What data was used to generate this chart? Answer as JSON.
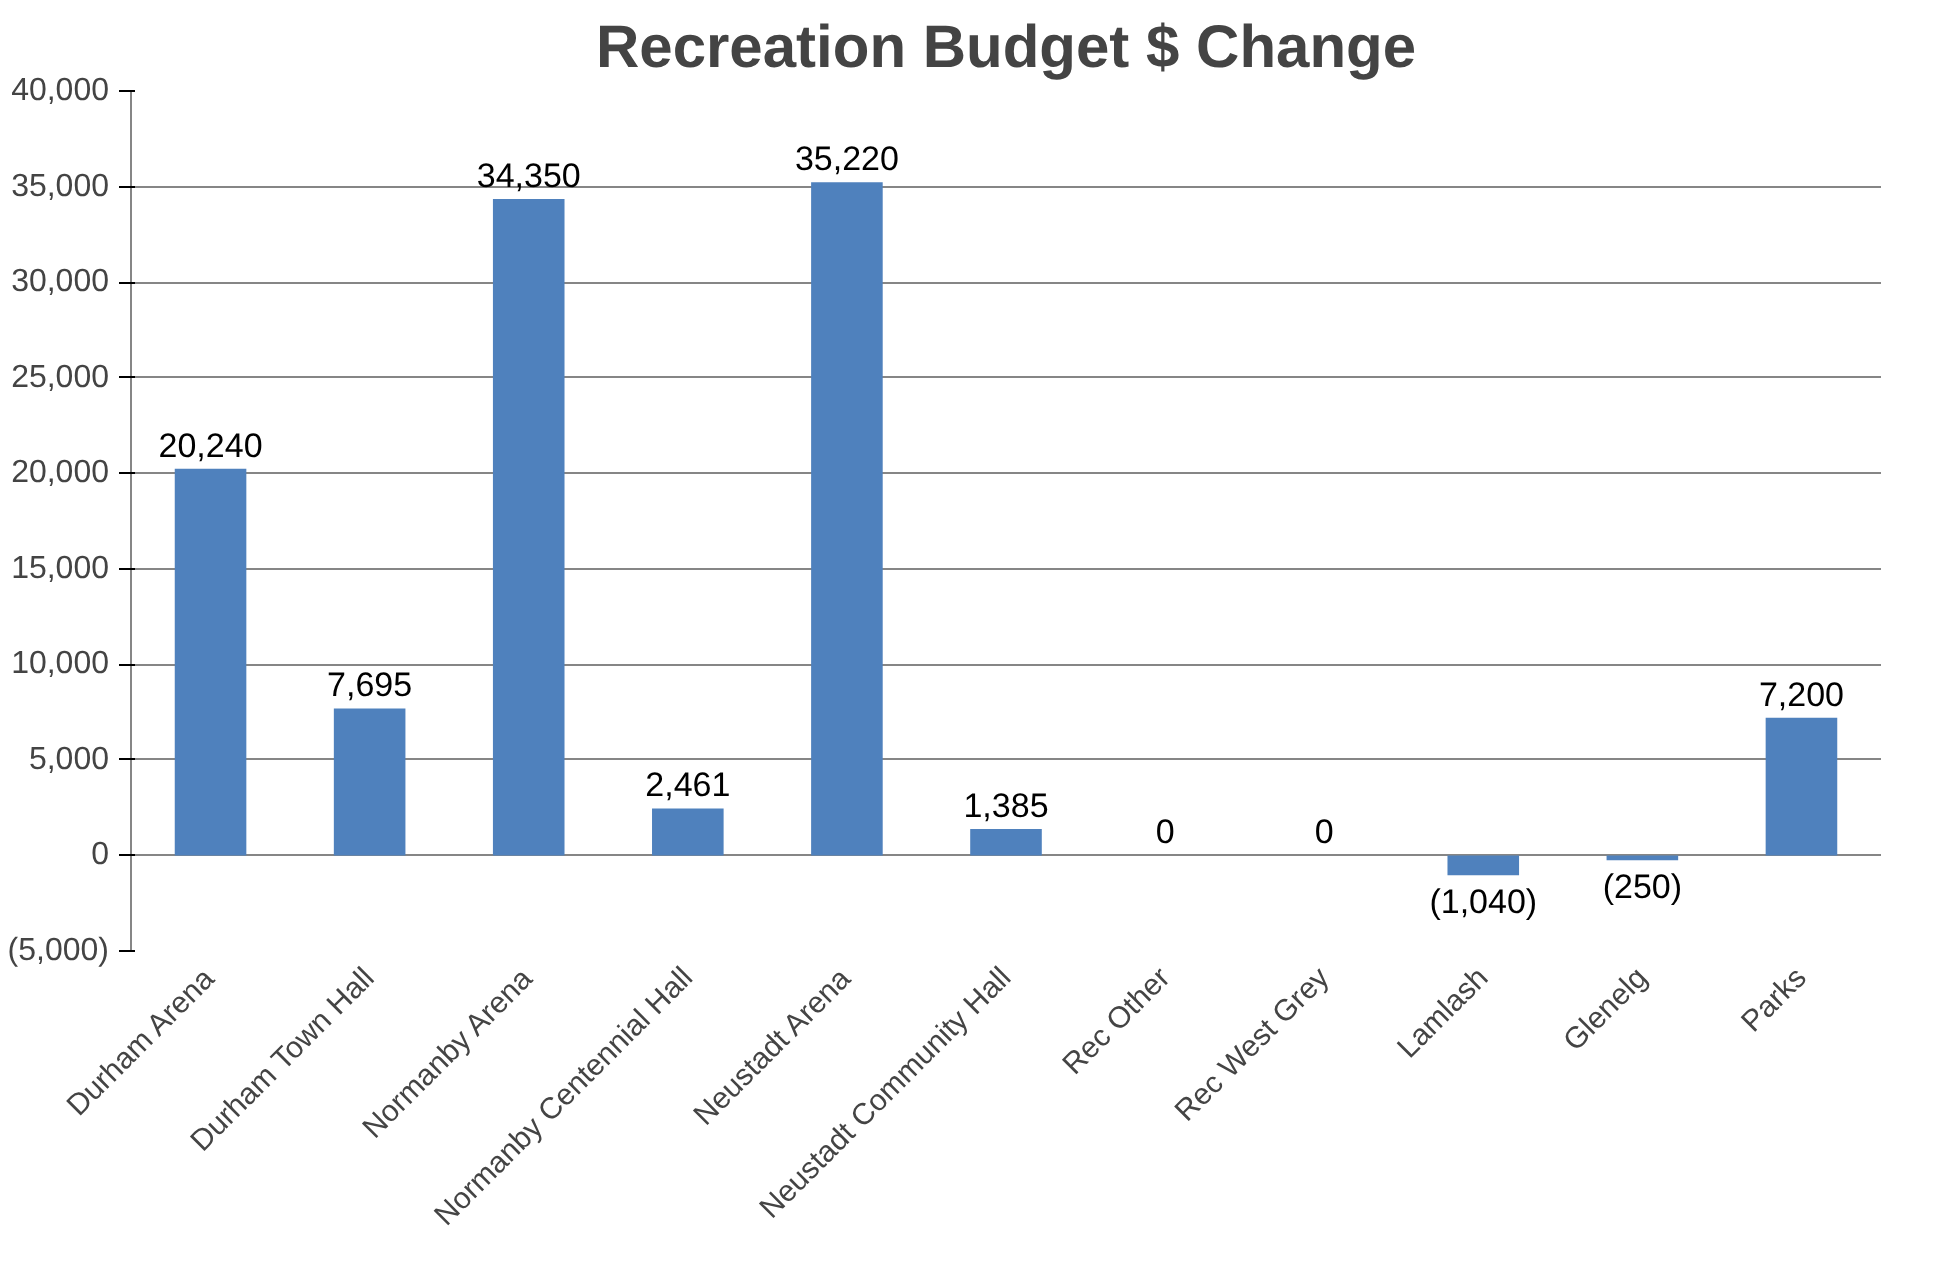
{
  "chart_data": {
    "type": "bar",
    "title": "Recreation Budget $ Change",
    "categories": [
      "Durham Arena",
      "Durham Town Hall",
      "Normanby Arena",
      "Normanby Centennial Hall",
      "Neustadt Arena",
      "Neustadt Community Hall",
      "Rec Other",
      "Rec West Grey",
      "Lamlash",
      "Glenelg",
      "Parks"
    ],
    "values": [
      20240,
      7695,
      34350,
      2461,
      35220,
      1385,
      0,
      0,
      -1040,
      -250,
      7200
    ],
    "value_labels": [
      "20,240",
      "7,695",
      "34,350",
      "2,461",
      "35,220",
      "1,385",
      "0",
      "0",
      "(1,040)",
      "(250)",
      "7,200"
    ],
    "color": "#4f81bd",
    "ylim": [
      -5000,
      40000
    ],
    "yticks": [
      {
        "value": -5000,
        "label": "(5,000)"
      },
      {
        "value": 0,
        "label": "0"
      },
      {
        "value": 5000,
        "label": "5,000"
      },
      {
        "value": 10000,
        "label": "10,000"
      },
      {
        "value": 15000,
        "label": "15,000"
      },
      {
        "value": 20000,
        "label": "20,000"
      },
      {
        "value": 25000,
        "label": "25,000"
      },
      {
        "value": 30000,
        "label": "30,000"
      },
      {
        "value": 35000,
        "label": "35,000"
      },
      {
        "value": 40000,
        "label": "40,000"
      }
    ],
    "grid": "y"
  }
}
